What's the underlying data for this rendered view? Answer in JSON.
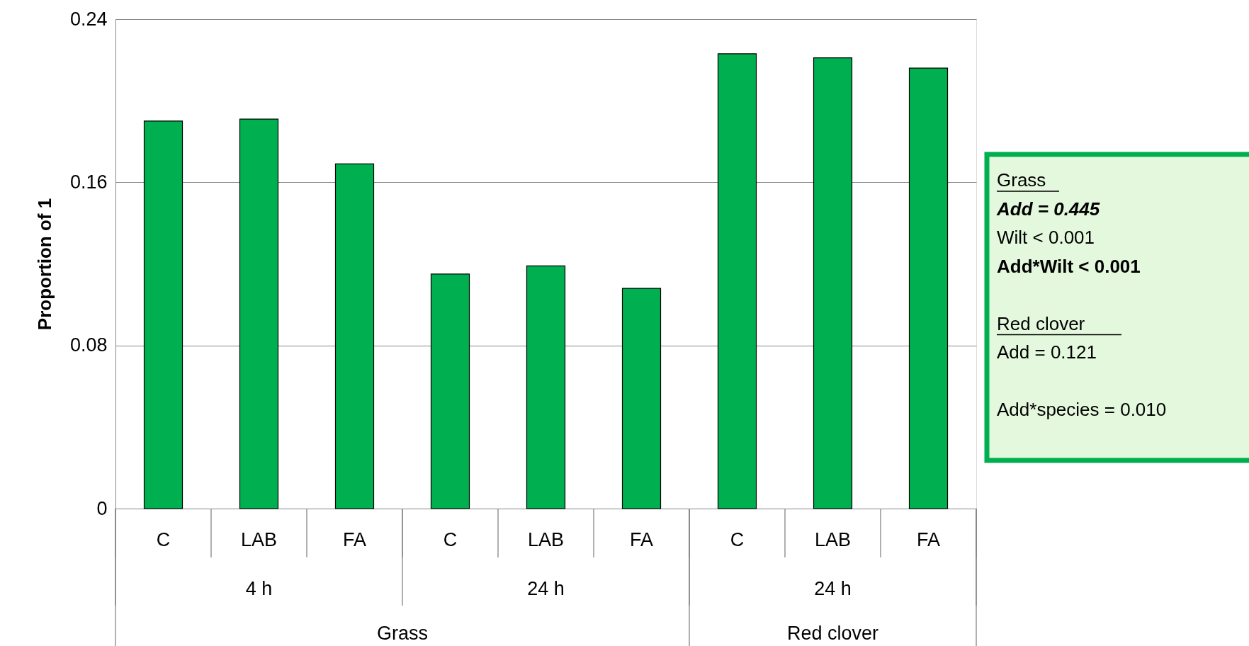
{
  "chart_data": {
    "type": "bar",
    "ylabel": "Proportion of 1",
    "categories": [
      "C",
      "LAB",
      "FA",
      "C",
      "LAB",
      "FA",
      "C",
      "LAB",
      "FA"
    ],
    "values": [
      0.19,
      0.191,
      0.169,
      0.115,
      0.119,
      0.108,
      0.223,
      0.221,
      0.216
    ],
    "color": "#00b050",
    "ylim": [
      0,
      0.24
    ],
    "yticks": [
      0,
      0.08,
      0.16,
      0.24
    ],
    "grid": "y",
    "annotations": [
      "4 h",
      "24 h",
      "24 h",
      "Grass",
      "Red clover",
      "Grass",
      "Add = 0.445",
      "Wilt < 0.001",
      "Add*Wilt < 0.001",
      "Red clover",
      "Add = 0.121",
      "Add*species = 0.010"
    ]
  }
}
